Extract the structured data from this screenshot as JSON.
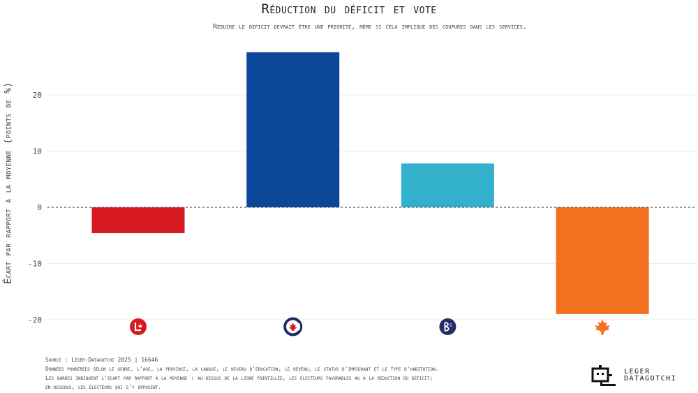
{
  "chart_data": {
    "type": "bar",
    "title": "Réduction du déficit et vote",
    "subtitle": "Réduire le déficit devrait être une priorité, même si cela implique des coupures dans les services.",
    "ylabel": "Écart par rapport à la moyenne (points de %)",
    "xlabel": "",
    "ylim": [
      -20,
      28
    ],
    "yticks": [
      20,
      10,
      0,
      -10,
      -20
    ],
    "categories": [
      "Parti libéral",
      "Parti conservateur",
      "Bloc québécois",
      "NPD"
    ],
    "values": [
      -4.6,
      27.6,
      7.8,
      -19.0
    ],
    "colors": [
      "#d71920",
      "#0c4899",
      "#33b1cc",
      "#f37021"
    ],
    "icons": [
      "liberal-logo-icon",
      "conservative-logo-icon",
      "bloc-logo-icon",
      "ndp-maple-leaf-icon"
    ],
    "grid": true,
    "zero_line": "dashed"
  },
  "footnotes": {
    "source": "Source : Léger-Datagotchi 2025 | 16646",
    "weighting": "Données pondérées selon le genre, l'âge, la province, la langue, le niveau d'éducation, le revenu, le status d'immigrant et le type d'habitation.",
    "explain1": "Les barres indiquent l'écart par rapport à la moyenne : au-dessus de la ligne pointillée, les électeurs favorables au à la réduction du déficit;",
    "explain2": "en-dessous, les électeurs qui s'y opposent."
  },
  "brand": {
    "line1": "LEGER",
    "line2": "DATAGOTCHI"
  }
}
